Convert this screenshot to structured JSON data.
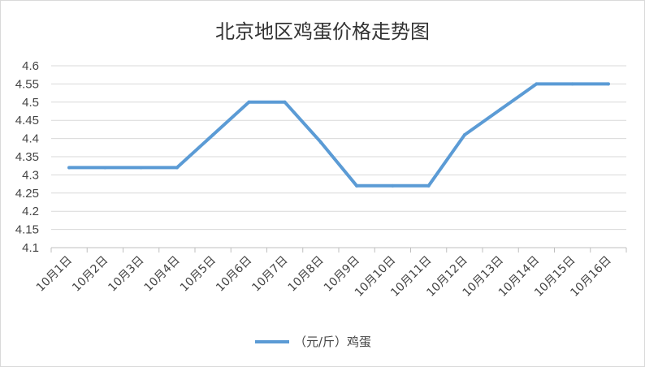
{
  "chart_data": {
    "type": "line",
    "title": "北京地区鸡蛋价格走势图",
    "xlabel": "",
    "ylabel": "",
    "categories": [
      "10月1日",
      "10月2日",
      "10月3日",
      "10月4日",
      "10月5日",
      "10月6日",
      "10月7日",
      "10月8日",
      "10月9日",
      "10月10日",
      "10月11日",
      "10月12日",
      "10月13日",
      "10月14日",
      "10月15日",
      "10月16日"
    ],
    "series": [
      {
        "name": "（元/斤）鸡蛋",
        "values": [
          4.32,
          4.32,
          4.32,
          4.32,
          4.41,
          4.5,
          4.5,
          4.39,
          4.27,
          4.27,
          4.27,
          4.41,
          4.48,
          4.55,
          4.55,
          4.55
        ],
        "color": "#5b9bd5"
      }
    ],
    "ylim": [
      4.1,
      4.6
    ],
    "yticks": [
      "4.1",
      "4.15",
      "4.2",
      "4.25",
      "4.3",
      "4.35",
      "4.4",
      "4.45",
      "4.5",
      "4.55",
      "4.6"
    ],
    "grid": true,
    "legend": "bottom"
  }
}
